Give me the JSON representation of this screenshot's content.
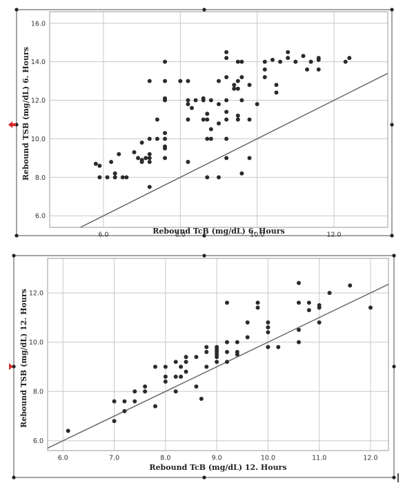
{
  "chart_data": [
    {
      "type": "scatter",
      "xlabel": "Rebound TcB (mg/dL) 6. Hours",
      "ylabel": "Rebound TSB (mg/dL) 6. Hours",
      "xlim": [
        4.6,
        13.4
      ],
      "ylim": [
        5.4,
        16.6
      ],
      "x_ticks": [
        "6.0",
        "8.0",
        "10.0",
        "12.0"
      ],
      "y_ticks": [
        "6.0",
        "8.0",
        "10.0",
        "12.0",
        "14.0",
        "16.0"
      ],
      "identity_line": true,
      "grid": true,
      "points": [
        [
          5.8,
          8.7
        ],
        [
          5.9,
          8.0
        ],
        [
          5.9,
          8.6
        ],
        [
          6.1,
          8.0
        ],
        [
          6.2,
          8.8
        ],
        [
          6.3,
          8.2
        ],
        [
          6.3,
          8.0
        ],
        [
          6.4,
          9.2
        ],
        [
          6.5,
          8.0
        ],
        [
          6.6,
          8.0
        ],
        [
          6.8,
          9.3
        ],
        [
          6.9,
          9.0
        ],
        [
          7.0,
          8.9
        ],
        [
          7.0,
          9.8
        ],
        [
          7.0,
          8.8
        ],
        [
          7.1,
          9.0
        ],
        [
          7.2,
          10.0
        ],
        [
          7.2,
          9.0
        ],
        [
          7.2,
          8.8
        ],
        [
          7.2,
          9.2
        ],
        [
          7.2,
          7.5
        ],
        [
          7.2,
          13.0
        ],
        [
          7.4,
          11.0
        ],
        [
          7.4,
          10.0
        ],
        [
          7.6,
          14.0
        ],
        [
          7.6,
          13.0
        ],
        [
          7.6,
          12.0
        ],
        [
          7.6,
          12.1
        ],
        [
          7.6,
          10.3
        ],
        [
          7.6,
          10.0
        ],
        [
          7.6,
          9.5
        ],
        [
          7.6,
          9.0
        ],
        [
          7.6,
          9.6
        ],
        [
          8.0,
          13.0
        ],
        [
          8.2,
          13.0
        ],
        [
          8.2,
          12.0
        ],
        [
          8.2,
          11.8
        ],
        [
          8.2,
          11.0
        ],
        [
          8.2,
          8.8
        ],
        [
          8.3,
          11.6
        ],
        [
          8.4,
          12.0
        ],
        [
          8.6,
          12.0
        ],
        [
          8.6,
          12.1
        ],
        [
          8.6,
          11.0
        ],
        [
          8.7,
          11.3
        ],
        [
          8.7,
          11.0
        ],
        [
          8.7,
          10.0
        ],
        [
          8.8,
          12.0
        ],
        [
          8.8,
          10.5
        ],
        [
          8.8,
          10.0
        ],
        [
          8.7,
          8.0
        ],
        [
          9.0,
          13.0
        ],
        [
          9.0,
          11.8
        ],
        [
          9.0,
          10.8
        ],
        [
          9.0,
          8.0
        ],
        [
          9.2,
          14.5
        ],
        [
          9.2,
          14.2
        ],
        [
          9.2,
          13.2
        ],
        [
          9.2,
          12.0
        ],
        [
          9.2,
          11.4
        ],
        [
          9.2,
          11.0
        ],
        [
          9.2,
          10.0
        ],
        [
          9.2,
          9.0
        ],
        [
          9.4,
          12.8
        ],
        [
          9.4,
          12.6
        ],
        [
          9.5,
          13.0
        ],
        [
          9.5,
          12.6
        ],
        [
          9.5,
          11.2
        ],
        [
          9.5,
          11.0
        ],
        [
          9.5,
          14.0
        ],
        [
          9.6,
          14.0
        ],
        [
          9.6,
          13.2
        ],
        [
          9.6,
          12.0
        ],
        [
          9.6,
          8.2
        ],
        [
          9.8,
          12.8
        ],
        [
          9.8,
          11.0
        ],
        [
          9.8,
          9.0
        ],
        [
          10.0,
          11.8
        ],
        [
          10.2,
          14.0
        ],
        [
          10.2,
          13.6
        ],
        [
          10.2,
          13.2
        ],
        [
          10.4,
          14.1
        ],
        [
          10.5,
          12.8
        ],
        [
          10.5,
          12.4
        ],
        [
          10.6,
          14.0
        ],
        [
          10.8,
          14.5
        ],
        [
          10.8,
          14.2
        ],
        [
          11.0,
          14.0
        ],
        [
          11.2,
          14.3
        ],
        [
          11.3,
          13.6
        ],
        [
          11.4,
          14.0
        ],
        [
          11.6,
          14.2
        ],
        [
          11.6,
          14.1
        ],
        [
          11.6,
          13.6
        ],
        [
          12.3,
          14.0
        ],
        [
          12.4,
          14.2
        ]
      ]
    },
    {
      "type": "scatter",
      "xlabel": "Rebound TcB (mg/dL) 12. Hours",
      "ylabel": "Rebound TSB (mg/dL) 12. Hours",
      "xlim": [
        5.7,
        12.35
      ],
      "ylim": [
        5.6,
        13.4
      ],
      "x_ticks": [
        "6.0",
        "7.0",
        "8.0",
        "9.0",
        "10.0",
        "11.0",
        "12.0"
      ],
      "y_ticks": [
        "6.0",
        "8.0",
        "10.0",
        "12.0"
      ],
      "identity_line": true,
      "grid": true,
      "points": [
        [
          6.1,
          6.4
        ],
        [
          7.0,
          7.6
        ],
        [
          7.0,
          6.8
        ],
        [
          7.2,
          7.6
        ],
        [
          7.2,
          7.2
        ],
        [
          7.4,
          8.0
        ],
        [
          7.4,
          7.6
        ],
        [
          7.6,
          8.2
        ],
        [
          7.6,
          8.0
        ],
        [
          7.8,
          9.0
        ],
        [
          7.8,
          7.4
        ],
        [
          8.0,
          9.0
        ],
        [
          8.0,
          8.6
        ],
        [
          8.0,
          8.4
        ],
        [
          8.2,
          9.2
        ],
        [
          8.2,
          8.6
        ],
        [
          8.2,
          8.0
        ],
        [
          8.3,
          9.0
        ],
        [
          8.3,
          8.6
        ],
        [
          8.4,
          9.4
        ],
        [
          8.4,
          9.2
        ],
        [
          8.4,
          8.8
        ],
        [
          8.6,
          9.4
        ],
        [
          8.6,
          8.2
        ],
        [
          8.7,
          7.7
        ],
        [
          8.8,
          9.8
        ],
        [
          8.8,
          9.6
        ],
        [
          8.8,
          9.0
        ],
        [
          9.0,
          9.8
        ],
        [
          9.0,
          9.7
        ],
        [
          9.0,
          9.6
        ],
        [
          9.0,
          9.5
        ],
        [
          9.0,
          9.4
        ],
        [
          9.0,
          9.2
        ],
        [
          9.2,
          11.6
        ],
        [
          9.2,
          10.0
        ],
        [
          9.2,
          9.6
        ],
        [
          9.2,
          9.2
        ],
        [
          9.4,
          10.0
        ],
        [
          9.4,
          9.6
        ],
        [
          9.4,
          9.5
        ],
        [
          9.6,
          10.8
        ],
        [
          9.6,
          10.2
        ],
        [
          9.8,
          11.6
        ],
        [
          9.8,
          11.4
        ],
        [
          10.0,
          10.8
        ],
        [
          10.0,
          10.6
        ],
        [
          10.0,
          10.4
        ],
        [
          10.0,
          9.8
        ],
        [
          10.2,
          9.8
        ],
        [
          10.6,
          12.4
        ],
        [
          10.6,
          11.6
        ],
        [
          10.6,
          10.5
        ],
        [
          10.6,
          10.0
        ],
        [
          10.8,
          11.6
        ],
        [
          10.8,
          11.3
        ],
        [
          11.0,
          11.5
        ],
        [
          11.0,
          11.4
        ],
        [
          11.0,
          10.8
        ],
        [
          11.2,
          12.0
        ],
        [
          11.6,
          12.3
        ],
        [
          12.0,
          11.4
        ]
      ]
    }
  ]
}
